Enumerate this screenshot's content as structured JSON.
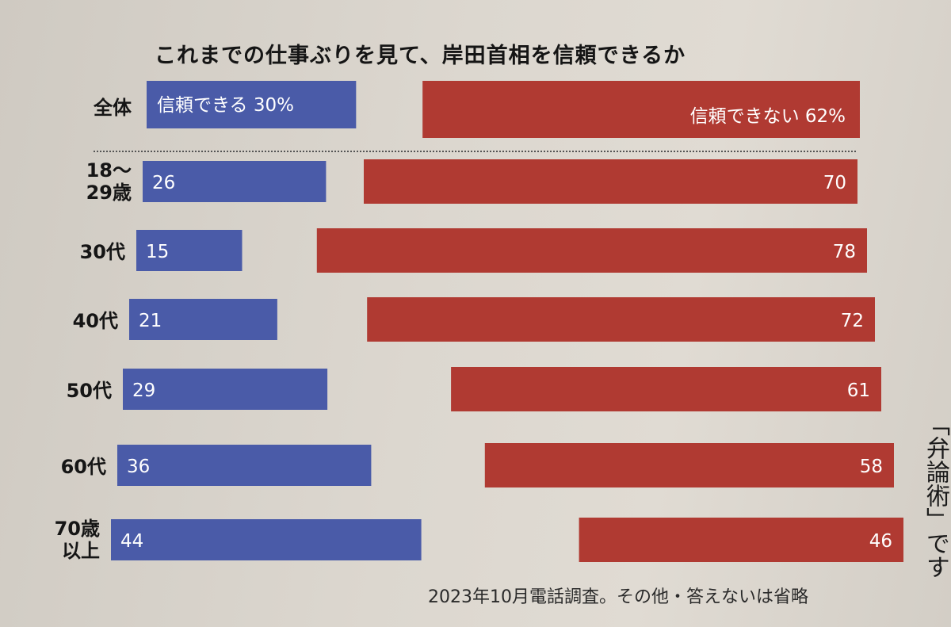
{
  "chart_data": {
    "type": "bar",
    "title": "これまでの仕事ぶりを見て、岸田首相を信頼できるか",
    "overall": {
      "label": "全体",
      "trust_label": "信頼できる 30%",
      "distrust_label": "信頼できない 62%",
      "trust": 30,
      "distrust": 62
    },
    "categories": [
      "18〜\n29歳",
      "30代",
      "40代",
      "50代",
      "60代",
      "70歳\n以上"
    ],
    "series": [
      {
        "name": "信頼できる",
        "color": "#4a5ba8",
        "values": [
          26,
          15,
          21,
          29,
          36,
          44
        ]
      },
      {
        "name": "信頼できない",
        "color": "#b03a32",
        "values": [
          70,
          78,
          72,
          61,
          58,
          46
        ]
      }
    ],
    "footnote": "2023年10月電話調査。その他・答えないは省略"
  },
  "side_text": "「弁論術」です"
}
